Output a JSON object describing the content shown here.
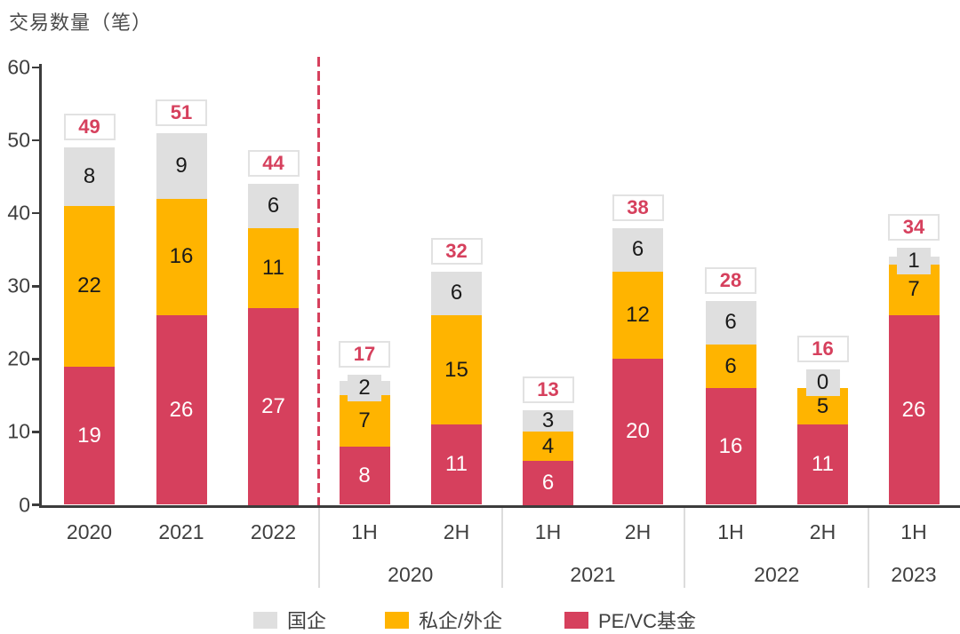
{
  "chart_data": {
    "type": "bar",
    "stacked": true,
    "title": "交易数量（笔）",
    "ylabel": "",
    "xlabel": "",
    "ylim": [
      0,
      60
    ],
    "yticks": [
      0,
      10,
      20,
      30,
      40,
      50,
      60
    ],
    "grid": false,
    "categories": [
      "2020",
      "2021",
      "2022",
      "1H",
      "2H",
      "1H",
      "2H",
      "1H",
      "2H",
      "1H"
    ],
    "series": [
      {
        "name": "PE/VC基金",
        "color": "#d6405d",
        "label_color": "#ffffff",
        "values": [
          19,
          26,
          27,
          8,
          11,
          6,
          20,
          16,
          11,
          26
        ]
      },
      {
        "name": "私企/外企",
        "color": "#ffb400",
        "label_color": "#1a1a1a",
        "values": [
          22,
          16,
          11,
          7,
          15,
          4,
          12,
          6,
          5,
          7
        ]
      },
      {
        "name": "国企",
        "color": "#dfdfdf",
        "label_color": "#1a1a1a",
        "values": [
          8,
          9,
          6,
          2,
          6,
          3,
          6,
          6,
          0,
          1
        ]
      }
    ],
    "totals": [
      49,
      51,
      44,
      17,
      32,
      13,
      38,
      28,
      16,
      34
    ],
    "total_label_color": "#d6405d",
    "groups": [
      {
        "label": "2020",
        "members": [
          3,
          4
        ]
      },
      {
        "label": "2021",
        "members": [
          5,
          6
        ]
      },
      {
        "label": "2022",
        "members": [
          7,
          8
        ]
      },
      {
        "label": "2023",
        "members": [
          9
        ]
      }
    ],
    "dividers": {
      "dashed_red_after_bar_index": 2,
      "dashed_color": "#d6405d",
      "solid_gray_between_groups": true,
      "solid_color": "#dcdcdc"
    },
    "legend_position": "bottom",
    "legend": [
      {
        "label": "国企",
        "color": "#dfdfdf"
      },
      {
        "label": "私企/外企",
        "color": "#ffb400"
      },
      {
        "label": "PE/VC基金",
        "color": "#d6405d"
      }
    ]
  }
}
